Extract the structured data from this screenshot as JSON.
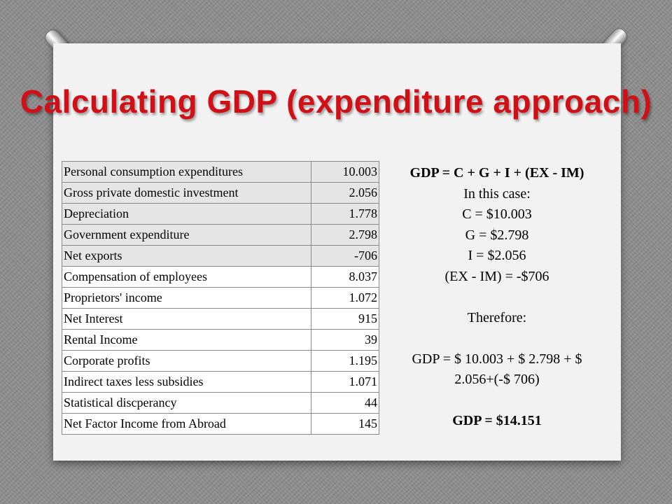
{
  "title": "Calculating GDP (expenditure approach)",
  "table": {
    "rows": [
      {
        "label": "Personal consumption expenditures",
        "value": "10.003"
      },
      {
        "label": "Gross private domestic investment",
        "value": "2.056"
      },
      {
        "label": "Depreciation",
        "value": "1.778"
      },
      {
        "label": "Government expenditure",
        "value": "2.798"
      },
      {
        "label": "Net exports",
        "value": "-706"
      },
      {
        "label": "Compensation of employees",
        "value": "8.037"
      },
      {
        "label": "Proprietors' income",
        "value": "1.072"
      },
      {
        "label": "Net Interest",
        "value": "915"
      },
      {
        "label": "Rental Income",
        "value": "39"
      },
      {
        "label": "Corporate profits",
        "value": "1.195"
      },
      {
        "label": "Indirect taxes less subsidies",
        "value": "1.071"
      },
      {
        "label": "Statistical discperancy",
        "value": "44"
      },
      {
        "label": "Net Factor Income from Abroad",
        "value": "145"
      }
    ]
  },
  "calc": {
    "formula": "GDP = C + G + I + (EX - IM)",
    "in_this_case": "In this case:",
    "c": "C = $10.003",
    "g": "G = $2.798",
    "i": "I = $2.056",
    "ex_im": "(EX - IM) = -$706",
    "therefore": "Therefore:",
    "equation_line1": "GDP = $ 10.003 + $ 2.798 + $",
    "equation_line2": "2.056+(-$ 706)",
    "result": "GDP = $14.151"
  }
}
